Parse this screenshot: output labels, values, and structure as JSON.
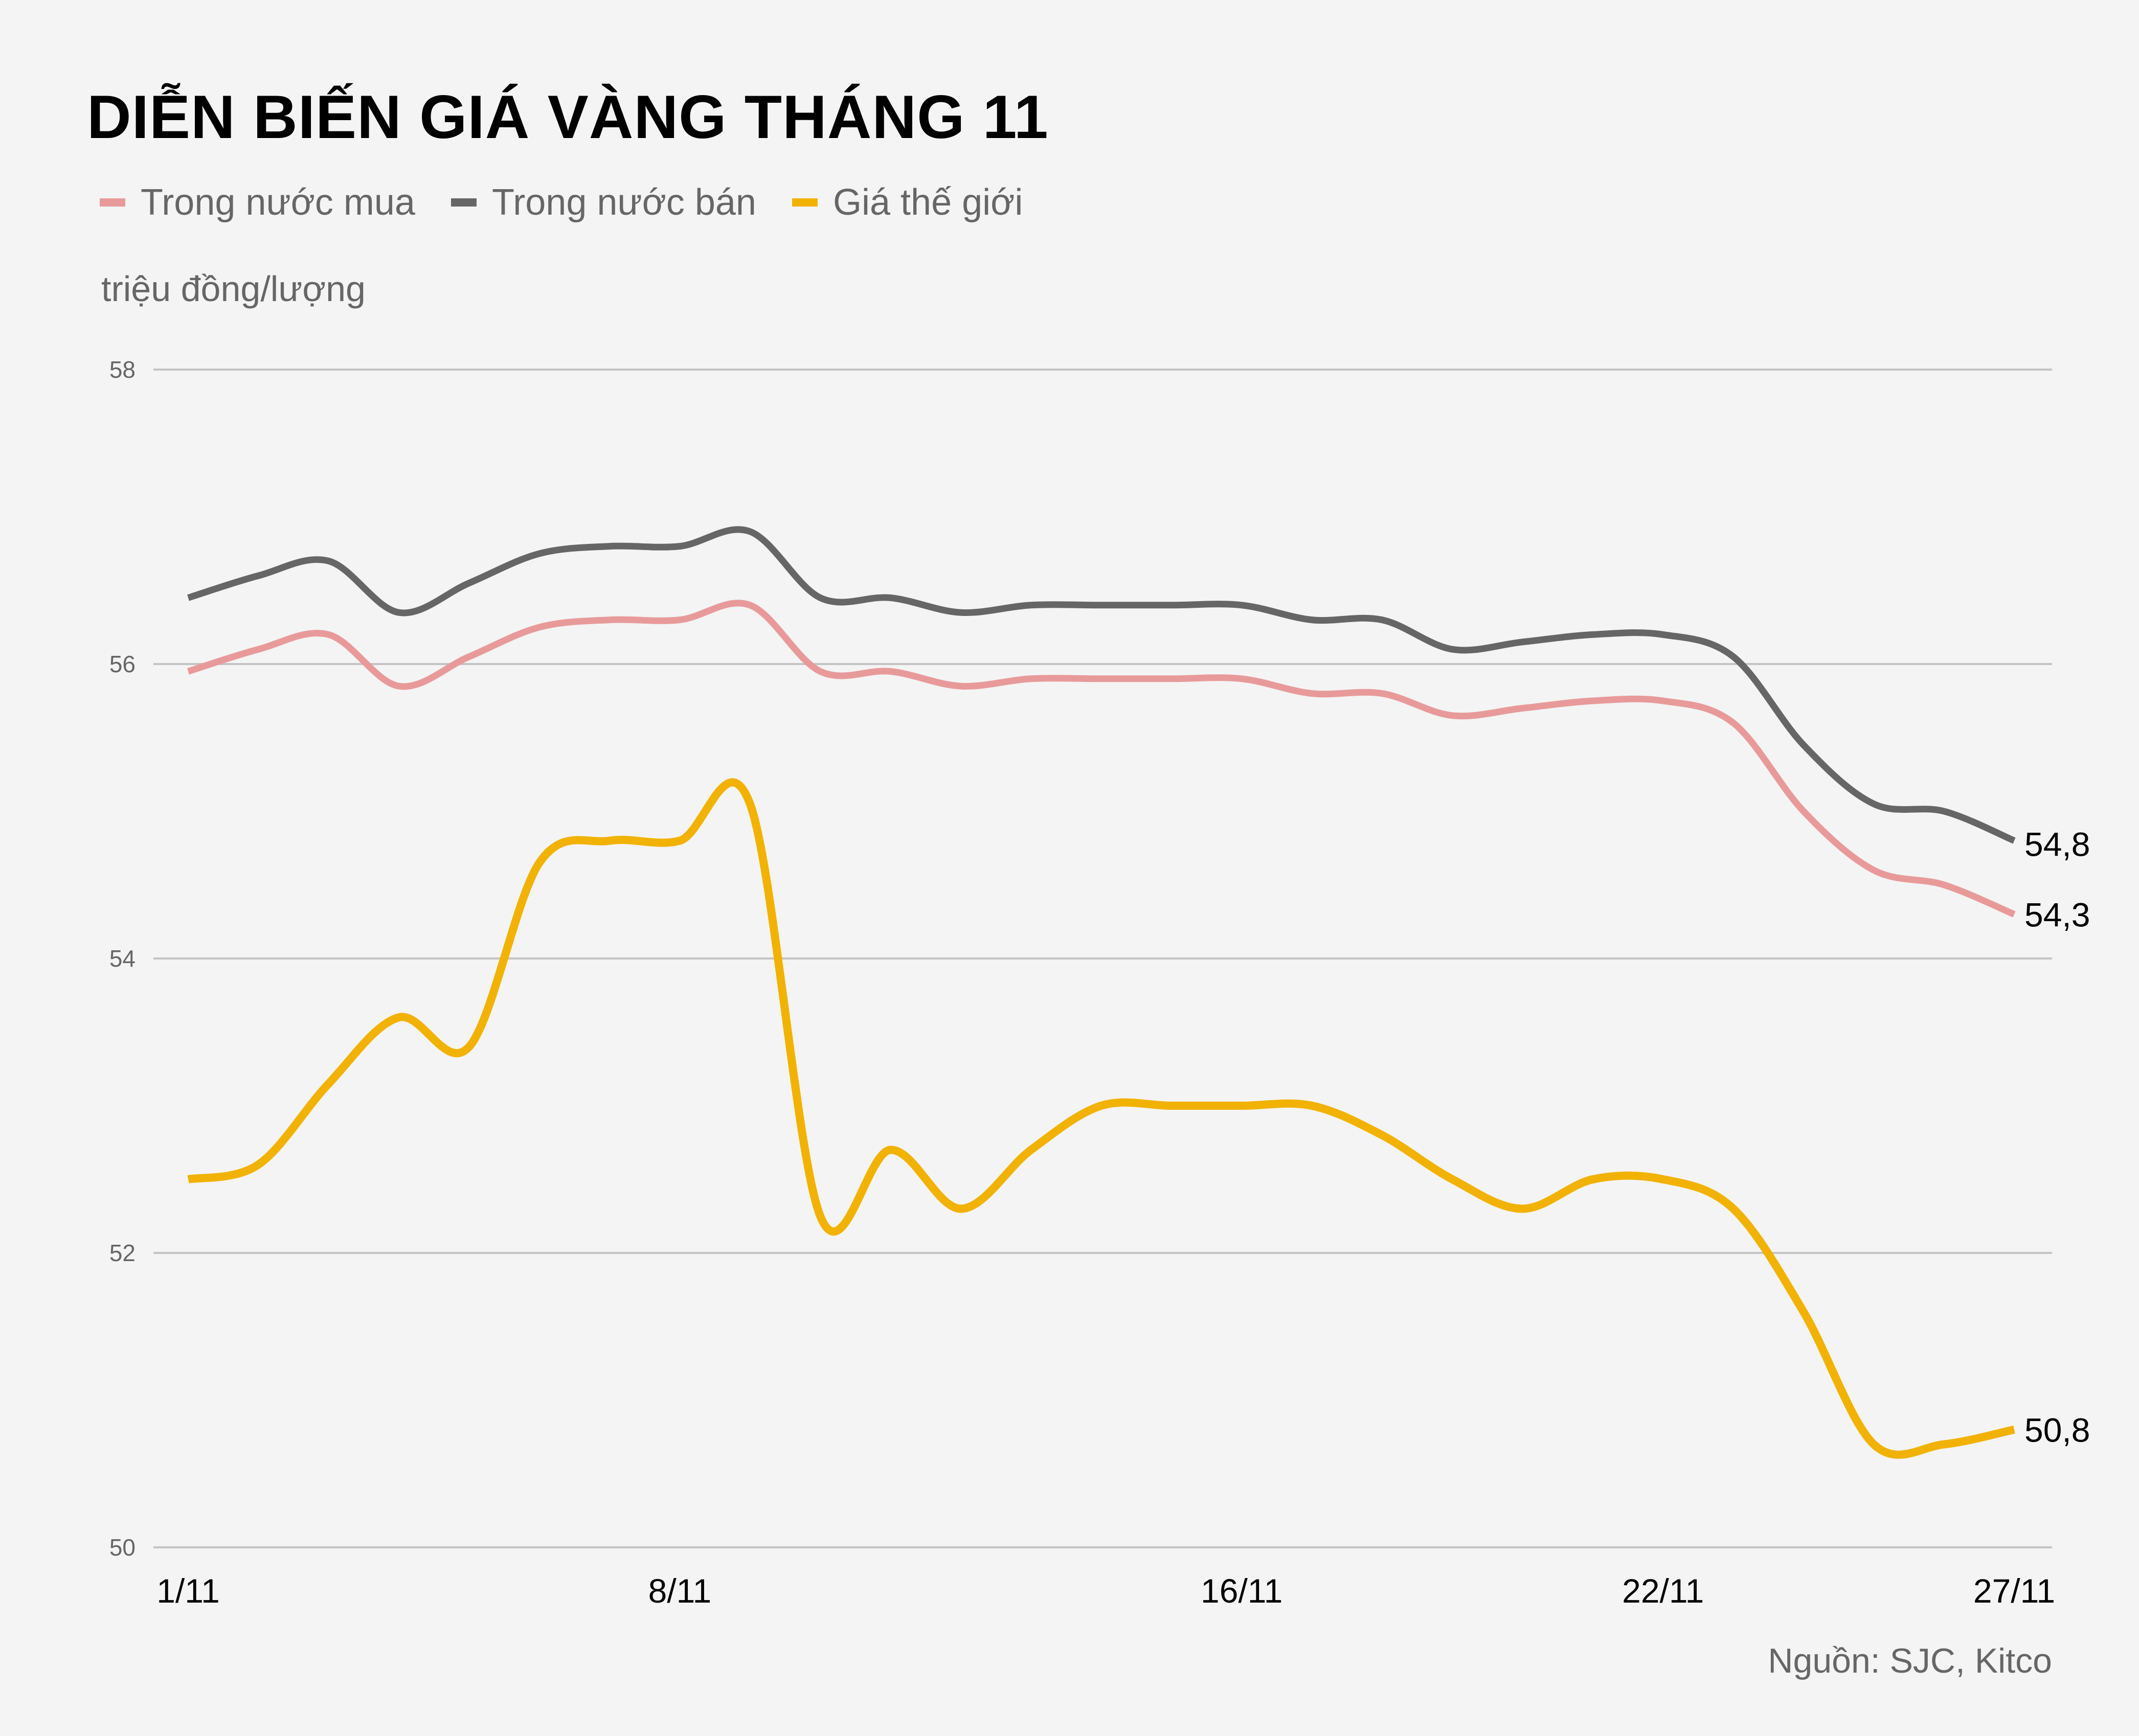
{
  "chart_data": {
    "type": "line",
    "title": "DIỄN BIẾN GIÁ VÀNG THÁNG 11",
    "ylabel": "triệu đồng/lượng",
    "xlabel": "",
    "source": "Nguồn: SJC, Kitco",
    "ylim": [
      50,
      58
    ],
    "yticks": [
      50,
      52,
      54,
      56,
      58
    ],
    "x": [
      "1/11",
      "2/11",
      "3/11",
      "4/11",
      "5/11",
      "6/11",
      "7/11",
      "8/11",
      "9/11",
      "10/11",
      "11/11",
      "12/11",
      "13/11",
      "14/11",
      "15/11",
      "16/11",
      "17/11",
      "18/11",
      "19/11",
      "20/11",
      "21/11",
      "22/11",
      "23/11",
      "24/11",
      "25/11",
      "26/11",
      "27/11"
    ],
    "xtick_labels": [
      "1/11",
      "8/11",
      "16/11",
      "22/11",
      "27/11"
    ],
    "grid": true,
    "legend_placement": "top-left",
    "series": [
      {
        "name": "Trong nước mua",
        "color": "#e89a9a",
        "values": [
          55.95,
          56.1,
          56.2,
          55.85,
          56.05,
          56.25,
          56.3,
          56.3,
          56.4,
          55.95,
          55.95,
          55.85,
          55.9,
          55.9,
          55.9,
          55.9,
          55.8,
          55.8,
          55.65,
          55.7,
          55.75,
          55.75,
          55.6,
          55.0,
          54.6,
          54.5,
          54.3
        ],
        "end_label": "54,3"
      },
      {
        "name": "Trong nước bán",
        "color": "#666666",
        "values": [
          56.45,
          56.6,
          56.7,
          56.35,
          56.55,
          56.75,
          56.8,
          56.8,
          56.9,
          56.45,
          56.45,
          56.35,
          56.4,
          56.4,
          56.4,
          56.4,
          56.3,
          56.3,
          56.1,
          56.15,
          56.2,
          56.2,
          56.05,
          55.45,
          55.05,
          55.0,
          54.8
        ],
        "end_label": "54,8"
      },
      {
        "name": "Giá thế giới",
        "color": "#f2b200",
        "values": [
          52.5,
          52.6,
          53.15,
          53.6,
          53.4,
          54.65,
          54.8,
          54.8,
          55.05,
          52.25,
          52.7,
          52.3,
          52.7,
          53.0,
          53.0,
          53.0,
          53.0,
          52.8,
          52.5,
          52.3,
          52.5,
          52.5,
          52.3,
          51.6,
          50.7,
          50.7,
          50.8
        ],
        "end_label": "50,8"
      }
    ]
  }
}
